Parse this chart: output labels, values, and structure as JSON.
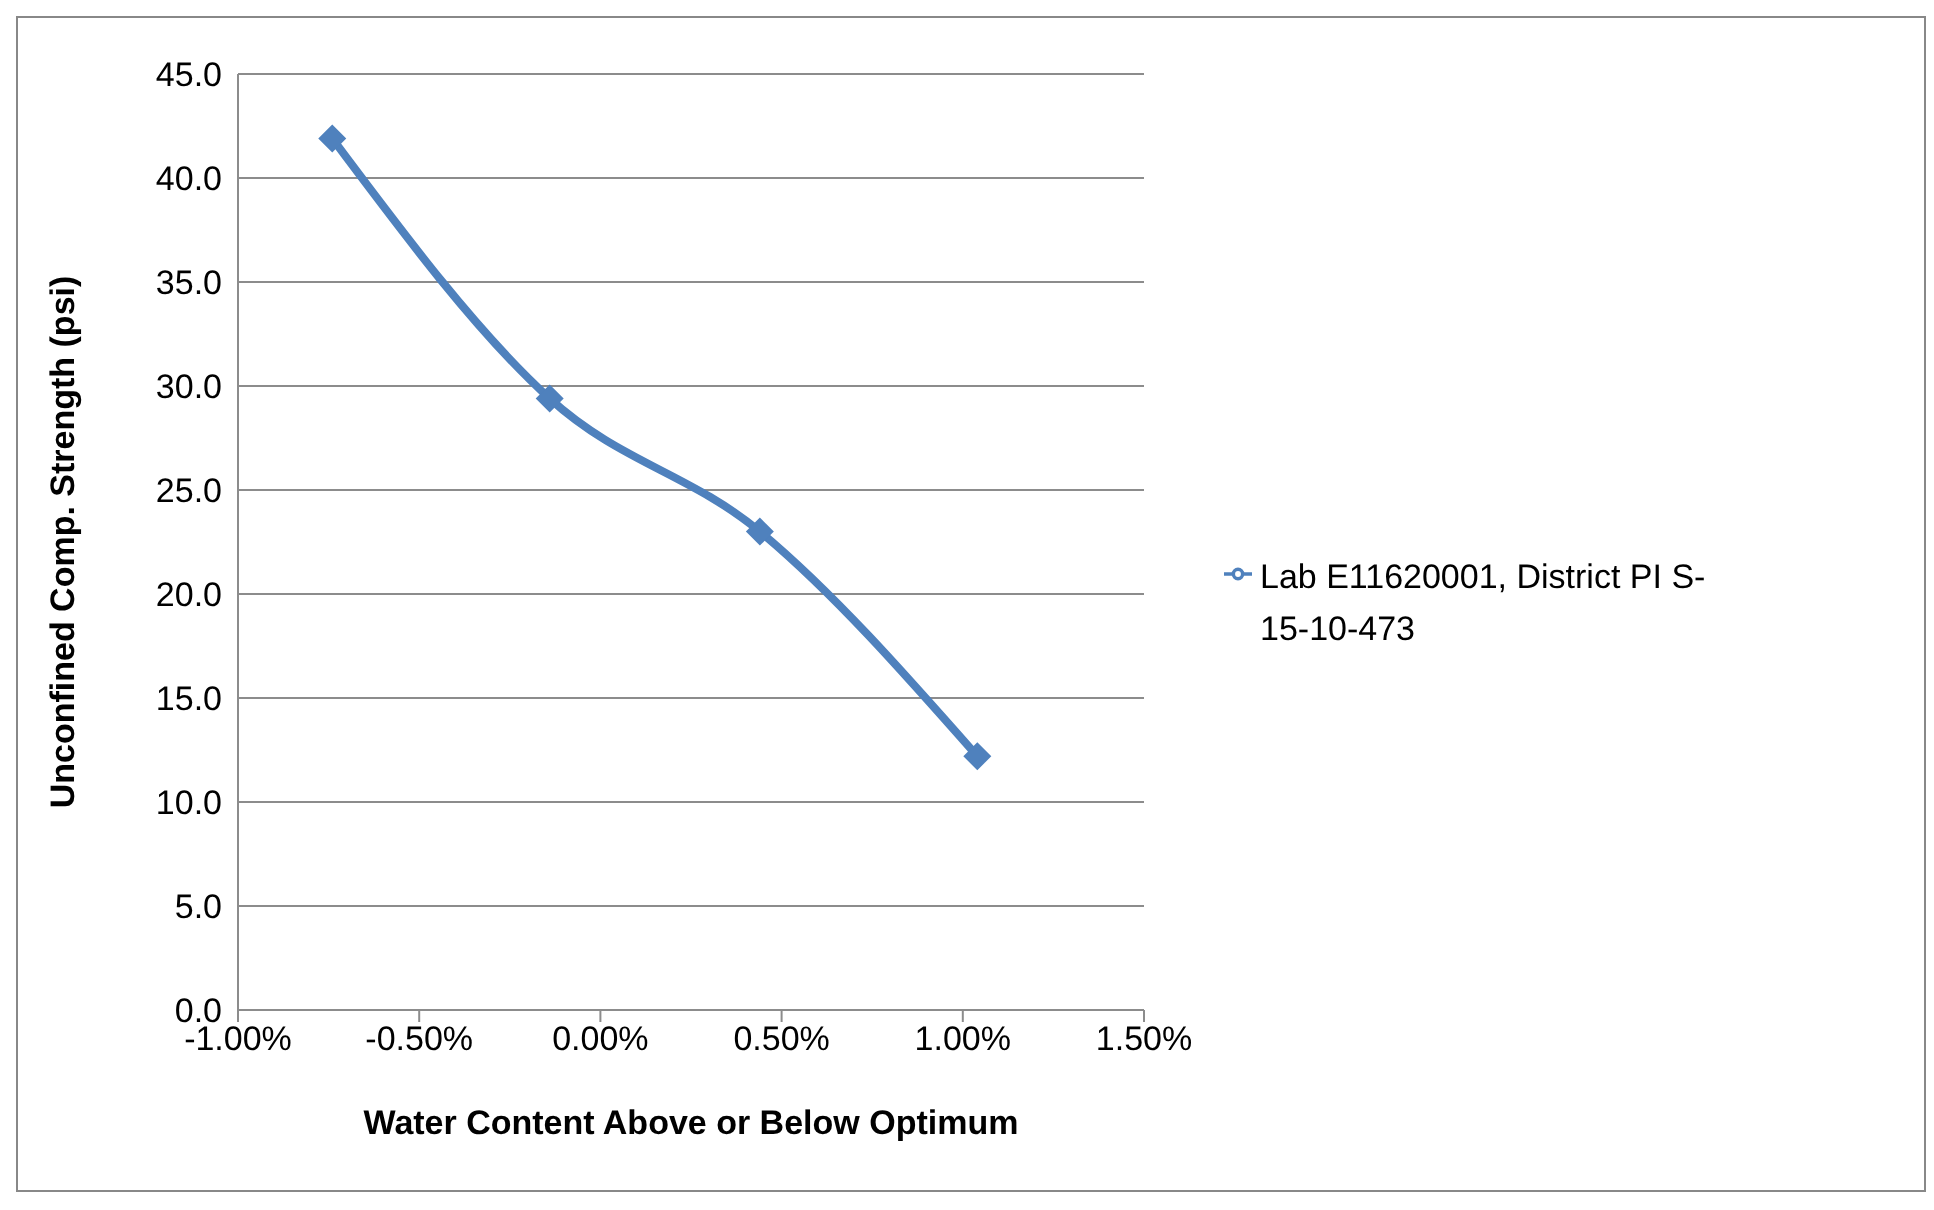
{
  "chart_data": {
    "type": "line",
    "xlabel": "Water Content Above or Below Optimum",
    "ylabel": "Unconfined Comp. Strength (psi)",
    "x": [
      -0.74,
      -0.14,
      0.44,
      1.04
    ],
    "series": [
      {
        "name": "Lab E11620001, District PI S-15-10-473",
        "color": "#4f81bd",
        "values": [
          41.9,
          29.4,
          23.0,
          12.2
        ]
      }
    ],
    "xlim": [
      -1,
      1.5
    ],
    "xticks": [
      {
        "value": -1,
        "label": "-1.00%"
      },
      {
        "value": -0.5,
        "label": "-0.50%"
      },
      {
        "value": 0,
        "label": "0.00%"
      },
      {
        "value": 0.5,
        "label": "0.50%"
      },
      {
        "value": 1,
        "label": "1.00%"
      },
      {
        "value": 1.5,
        "label": "1.50%"
      }
    ],
    "ylim": [
      0,
      45
    ],
    "yticks": [
      {
        "value": 0,
        "label": "0.0"
      },
      {
        "value": 5,
        "label": "5.0"
      },
      {
        "value": 10,
        "label": "10.0"
      },
      {
        "value": 15,
        "label": "15.0"
      },
      {
        "value": 20,
        "label": "20.0"
      },
      {
        "value": 25,
        "label": "25.0"
      },
      {
        "value": 30,
        "label": "30.0"
      },
      {
        "value": 35,
        "label": "35.0"
      },
      {
        "value": 40,
        "label": "40.0"
      },
      {
        "value": 45,
        "label": "45.0"
      }
    ],
    "grid": "y",
    "legend": "right",
    "marker": "diamond",
    "line_style": "solid"
  }
}
